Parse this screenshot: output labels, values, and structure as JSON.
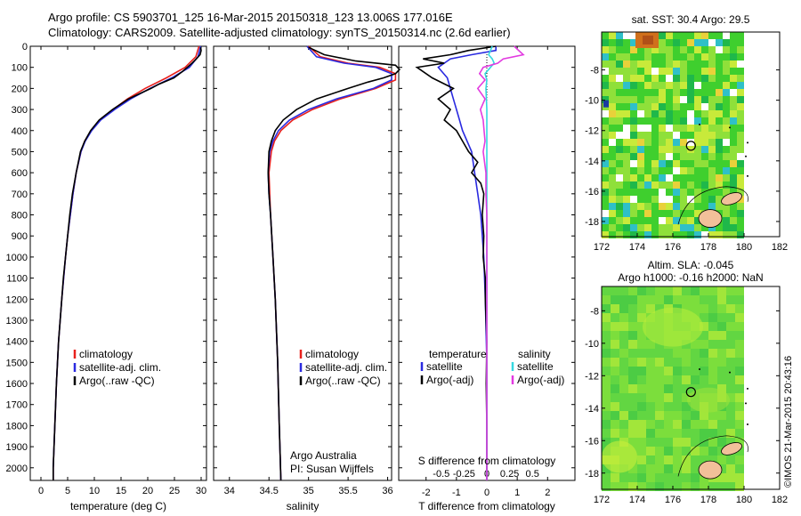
{
  "header": {
    "line1": "Argo profile: CS 5903701_125 16-Mar-2015 20150318_123 13.006S 177.016E",
    "line2": "Climatology: CARS2009. Satellite-adjusted climatology: synTS_20150314.nc (2.6d earlier)"
  },
  "stamp": "©IMOS 21-Mar-2015 20:43:16",
  "colors": {
    "climatology": "#e8201c",
    "satellite": "#2a2ae0",
    "argo": "#000000",
    "sal_satellite": "#35d8e0",
    "sal_argo": "#e23ae0",
    "land": "#f2c09a"
  },
  "chart_data": [
    {
      "type": "line",
      "id": "temperature",
      "xlabel": "temperature (deg C)",
      "xlim": [
        -2,
        31
      ],
      "xticks": [
        0,
        5,
        10,
        15,
        20,
        25,
        30
      ],
      "ylim": [
        0,
        2060
      ],
      "yticks": [
        0,
        100,
        200,
        300,
        400,
        500,
        600,
        700,
        800,
        900,
        1000,
        1100,
        1200,
        1300,
        1400,
        1500,
        1600,
        1700,
        1800,
        1900,
        2000
      ],
      "legend": [
        "climatology",
        "satellite-adj. clim.",
        "Argo(..raw -QC)"
      ],
      "series": [
        {
          "key": "climatology",
          "depth": [
            0,
            50,
            100,
            150,
            200,
            250,
            300,
            350,
            400,
            450,
            500,
            600,
            700,
            800,
            900,
            1000,
            1200,
            1400,
            1600,
            1800,
            2000,
            2060
          ],
          "values": [
            29.6,
            29.0,
            27.0,
            23.5,
            19.5,
            16.2,
            13.5,
            11.0,
            9.4,
            8.2,
            7.5,
            6.6,
            6.0,
            5.5,
            5.0,
            4.6,
            3.9,
            3.3,
            2.9,
            2.6,
            2.3,
            2.3
          ]
        },
        {
          "key": "satellite",
          "depth": [
            0,
            50,
            100,
            150,
            200,
            250,
            300,
            350,
            400,
            450,
            500,
            600,
            700,
            800,
            900,
            1000,
            1200,
            1400,
            1600,
            1800,
            2000,
            2060
          ],
          "values": [
            29.9,
            29.4,
            27.8,
            24.5,
            20.4,
            16.8,
            13.8,
            11.2,
            9.5,
            8.3,
            7.5,
            6.6,
            6.0,
            5.5,
            5.0,
            4.6,
            3.9,
            3.3,
            2.9,
            2.6,
            2.3,
            2.3
          ]
        },
        {
          "key": "argo",
          "depth": [
            5,
            20,
            40,
            60,
            80,
            100,
            120,
            150,
            180,
            200,
            250,
            300,
            350,
            400,
            450,
            500,
            550,
            600,
            700,
            800,
            900,
            1000,
            1100,
            1200,
            1400,
            1600,
            1800,
            2000,
            2060
          ],
          "values": [
            29.9,
            30.0,
            29.8,
            29.1,
            28.3,
            27.4,
            26.5,
            24.9,
            22.1,
            20.6,
            16.4,
            13.4,
            10.9,
            9.3,
            8.2,
            7.4,
            7.0,
            6.6,
            5.9,
            5.4,
            5.0,
            4.6,
            4.2,
            3.9,
            3.3,
            2.9,
            2.6,
            2.3,
            2.3
          ]
        }
      ]
    },
    {
      "type": "line",
      "id": "salinity",
      "xlabel": "salinity",
      "xlim": [
        33.8,
        36.05
      ],
      "xticks": [
        34,
        34.5,
        35,
        35.5,
        36
      ],
      "xticklabels": [
        "34",
        "34.5",
        "35",
        "35.5",
        "36"
      ],
      "ylim": [
        0,
        2060
      ],
      "legend": [
        "climatology",
        "satellite-adj. clim.",
        "Argo(..raw -QC)"
      ],
      "annotation": [
        "Argo Australia",
        "PI: Susan Wijffels"
      ],
      "series": [
        {
          "key": "climatology",
          "depth": [
            0,
            50,
            80,
            100,
            130,
            160,
            200,
            250,
            300,
            350,
            400,
            450,
            500,
            600,
            700,
            800,
            1000,
            1200,
            1500,
            1800,
            2060
          ],
          "values": [
            35.0,
            35.15,
            35.5,
            35.9,
            36.1,
            36.1,
            35.85,
            35.4,
            35.05,
            34.8,
            34.65,
            34.57,
            34.53,
            34.5,
            34.51,
            34.52,
            34.55,
            34.58,
            34.61,
            34.63,
            34.65
          ]
        },
        {
          "key": "satellite",
          "depth": [
            0,
            50,
            80,
            100,
            130,
            160,
            200,
            250,
            300,
            350,
            400,
            450,
            500,
            600,
            700,
            800,
            1000,
            1200,
            1500,
            1800,
            2060
          ],
          "values": [
            34.98,
            35.1,
            35.45,
            35.85,
            36.05,
            36.05,
            35.82,
            35.35,
            35.0,
            34.76,
            34.62,
            34.55,
            34.51,
            34.49,
            34.5,
            34.52,
            34.55,
            34.58,
            34.61,
            34.63,
            34.65
          ]
        },
        {
          "key": "argo",
          "depth": [
            5,
            40,
            70,
            90,
            110,
            130,
            150,
            170,
            200,
            250,
            300,
            350,
            400,
            450,
            500,
            600,
            700,
            800,
            1000,
            1200,
            1500,
            1800,
            2060
          ],
          "values": [
            35.0,
            35.2,
            35.6,
            36.1,
            36.15,
            36.1,
            35.95,
            35.75,
            35.5,
            35.1,
            34.85,
            34.68,
            34.58,
            34.53,
            34.5,
            34.49,
            34.5,
            34.52,
            34.55,
            34.58,
            34.61,
            34.63,
            34.65
          ]
        }
      ]
    },
    {
      "type": "line",
      "id": "differences",
      "xlabel": "T difference from climatology",
      "xlabel_top": "S difference from climatology",
      "xlim": [
        -2.9,
        2.9
      ],
      "xticks": [
        -2,
        -1,
        0,
        1,
        2
      ],
      "s_xticks": [
        -0.5,
        -0.25,
        0,
        0.25,
        0.5
      ],
      "s_xticklabels": [
        "-0.5",
        "-0.25",
        "0",
        "0.25",
        "0.5"
      ],
      "s_scale": 3,
      "ylim": [
        0,
        2060
      ],
      "legend_left": {
        "title": "temperature",
        "items": [
          "satellite",
          "Argo(-adj)"
        ]
      },
      "legend_right": {
        "title": "salinity",
        "items": [
          "satellite",
          "Argo(-adj)"
        ]
      },
      "series": [
        {
          "key": "t_satellite",
          "depth": [
            0,
            20,
            40,
            60,
            80,
            100,
            150,
            200,
            250,
            300,
            350,
            400,
            500,
            600,
            700,
            800,
            900,
            1000,
            1200,
            1500,
            2060
          ],
          "values": [
            0.3,
            0.3,
            -0.5,
            -1.2,
            -1.4,
            -1.6,
            -1.3,
            -1.2,
            -1.1,
            -1.0,
            -0.9,
            -0.8,
            -0.5,
            -0.4,
            -0.3,
            -0.2,
            -0.15,
            -0.1,
            -0.05,
            0,
            0
          ]
        },
        {
          "key": "t_argo",
          "depth": [
            0,
            20,
            40,
            60,
            80,
            100,
            150,
            200,
            250,
            300,
            350,
            400,
            450,
            500,
            550,
            600,
            650,
            700,
            800,
            900,
            1000,
            1100,
            1200,
            1400,
            1600,
            1800,
            2060
          ],
          "values": [
            0.3,
            -0.6,
            -1.2,
            -2.1,
            -1.4,
            -2.3,
            -1.8,
            -1.1,
            -1.6,
            -1.2,
            -1.4,
            -1.0,
            -0.8,
            -0.6,
            -0.3,
            -0.5,
            -0.2,
            -0.1,
            -0.15,
            -0.1,
            -0.12,
            -0.05,
            -0.05,
            0,
            -0.02,
            0,
            0
          ]
        },
        {
          "key": "s_satellite",
          "depth": [
            0,
            40,
            60,
            80,
            100,
            130,
            160,
            200,
            300,
            400,
            500,
            700,
            1000,
            1500,
            2060
          ],
          "values": [
            0.06,
            0.02,
            0.06,
            0.08,
            0.04,
            -0.02,
            0.0,
            -0.01,
            0,
            0,
            0,
            0,
            0,
            0,
            0
          ]
        },
        {
          "key": "s_argo",
          "depth": [
            0,
            40,
            60,
            80,
            100,
            130,
            160,
            200,
            250,
            300,
            350,
            400,
            450,
            500,
            600,
            700,
            800,
            1000,
            1200,
            1500,
            2060
          ],
          "values": [
            0.3,
            0.4,
            0.18,
            0.12,
            -0.04,
            -0.08,
            -0.02,
            -0.1,
            -0.02,
            -0.07,
            -0.04,
            -0.03,
            -0.02,
            -0.04,
            -0.01,
            -0.01,
            0,
            0,
            0,
            0,
            0
          ]
        }
      ]
    },
    {
      "type": "heatmap",
      "id": "sst_map",
      "title": "sat. SST: 30.4  Argo: 29.5",
      "xlim": [
        172,
        182
      ],
      "xticks": [
        172,
        174,
        176,
        178,
        180,
        182
      ],
      "ylim": [
        -19,
        -5.5
      ],
      "yticks": [
        -8,
        -10,
        -12,
        -14,
        -16,
        -18
      ],
      "data_xmax": 180,
      "marker": {
        "lon": 177.016,
        "lat": -13.006
      }
    },
    {
      "type": "heatmap",
      "id": "sla_map",
      "title": "Altim. SLA: -0.045",
      "subtitle": "Argo h1000: -0.16  h2000: NaN",
      "xlim": [
        172,
        182
      ],
      "xticks": [
        172,
        174,
        176,
        178,
        180,
        182
      ],
      "ylim": [
        -19,
        -6.5
      ],
      "yticks": [
        -8,
        -10,
        -12,
        -14,
        -16,
        -18
      ],
      "data_xmax": 180,
      "marker": {
        "lon": 177.016,
        "lat": -13.006
      }
    }
  ]
}
